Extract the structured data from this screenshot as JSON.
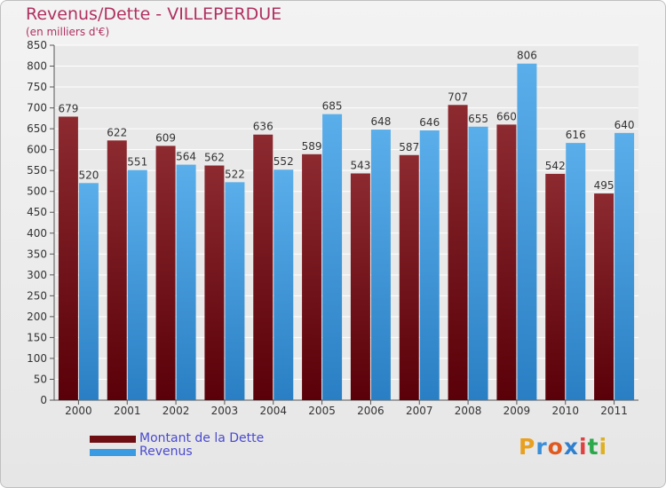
{
  "title": "Revenus/Dette - VILLEPERDUE",
  "subtitle": "(en milliers d'€)",
  "logo": {
    "text": "Proxiti",
    "colors": [
      "#e8a020",
      "#3a8fd8",
      "#e05a20",
      "#2f7fcf",
      "#e04040",
      "#2aa84a",
      "#e0b020"
    ]
  },
  "colors": {
    "dette": "#6e0d12",
    "revenus": "#3a9be3",
    "title": "#b03060",
    "legend_text": "#4a4ad0"
  },
  "chart_data": {
    "type": "bar",
    "title": "Revenus/Dette - VILLEPERDUE",
    "subtitle": "(en milliers d'€)",
    "categories": [
      "2000",
      "2001",
      "2002",
      "2003",
      "2004",
      "2005",
      "2006",
      "2007",
      "2008",
      "2009",
      "2010",
      "2011"
    ],
    "series": [
      {
        "name": "Montant de la Dette",
        "values": [
          679,
          622,
          609,
          562,
          636,
          589,
          543,
          587,
          707,
          660,
          542,
          495
        ]
      },
      {
        "name": "Revenus",
        "values": [
          520,
          551,
          564,
          522,
          552,
          685,
          648,
          646,
          655,
          806,
          616,
          640
        ]
      }
    ],
    "ylim": [
      0,
      850
    ],
    "yticks": [
      0,
      50,
      100,
      150,
      200,
      250,
      300,
      350,
      400,
      450,
      500,
      550,
      600,
      650,
      700,
      750,
      800,
      850
    ],
    "grid": true,
    "legend": "bottom-left"
  }
}
